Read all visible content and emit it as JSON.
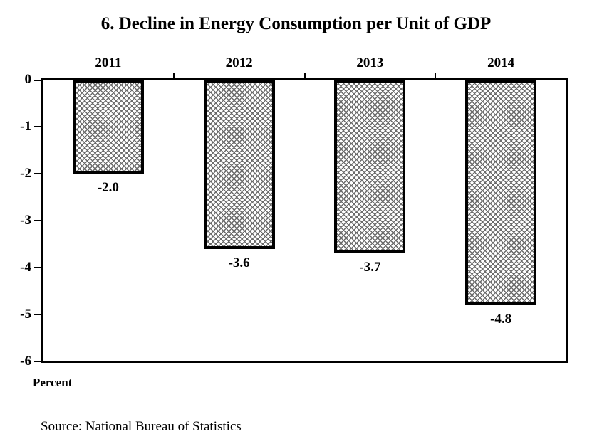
{
  "chart_data": {
    "type": "bar",
    "title": "6. Decline in Energy Consumption per Unit of GDP",
    "categories": [
      "2011",
      "2012",
      "2013",
      "2014"
    ],
    "values": [
      -2.0,
      -3.6,
      -3.7,
      -4.8
    ],
    "value_labels": [
      "-2.0",
      "-3.6",
      "-3.7",
      "-4.8"
    ],
    "y_ticks": [
      0,
      -1,
      -2,
      -3,
      -4,
      -5,
      -6
    ],
    "y_tick_labels": [
      "0",
      "-1",
      "-2",
      "-3",
      "-4",
      "-5",
      "-6"
    ],
    "ylim": [
      -6,
      0
    ],
    "ylabel": "Percent",
    "xlabel": "",
    "grid": false,
    "legend_position": "none",
    "bar_fill_pattern": "diagonal-crosshatch",
    "orientation": "vertical-negative",
    "source_note": "Source: National Bureau of Statistics",
    "colors": {
      "background": "#ffffff",
      "text": "#000000",
      "bar_border": "#000000",
      "pattern_lines": "#6b6b6b",
      "axis": "#000000"
    }
  }
}
